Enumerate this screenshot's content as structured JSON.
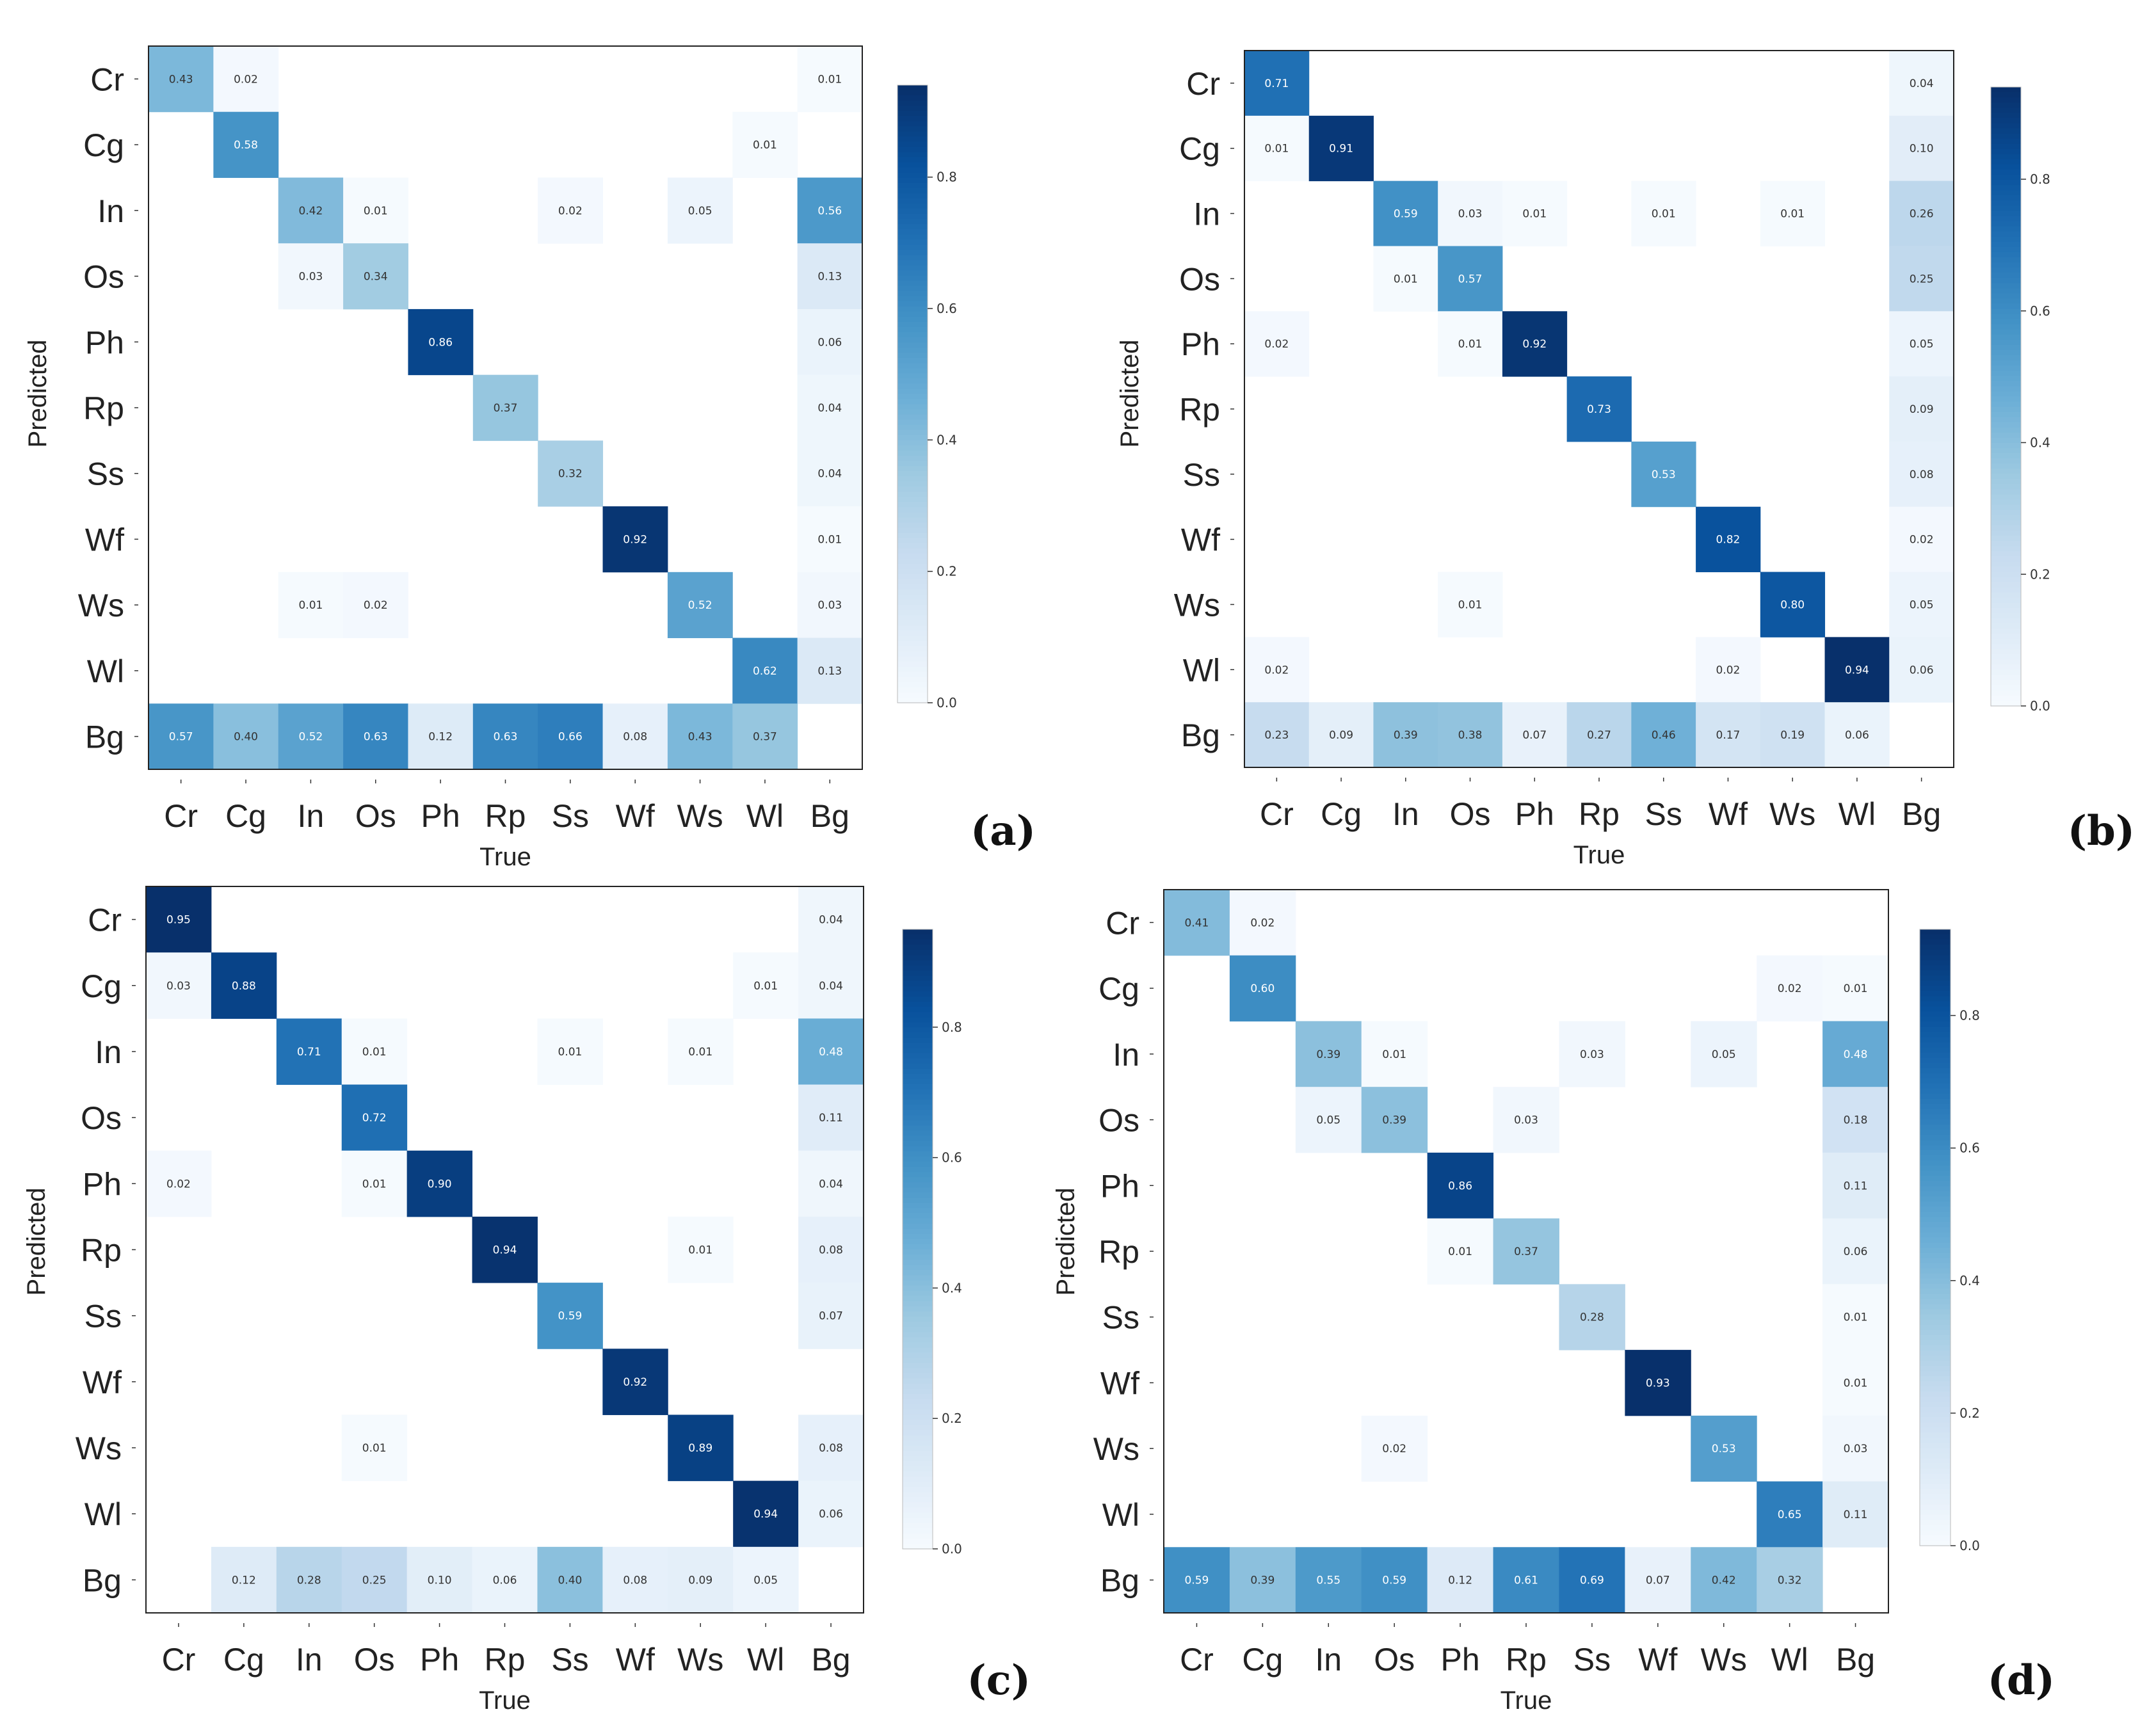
{
  "chart_data": [
    {
      "type": "heatmap",
      "panel_label": "(a)",
      "xlabel": "True",
      "ylabel": "Predicted",
      "row_labels": [
        "Cr",
        "Cg",
        "In",
        "Os",
        "Ph",
        "Rp",
        "Ss",
        "Wf",
        "Ws",
        "Wl",
        "Bg"
      ],
      "col_labels": [
        "Cr",
        "Cg",
        "In",
        "Os",
        "Ph",
        "Rp",
        "Ss",
        "Wf",
        "Ws",
        "Wl",
        "Bg"
      ],
      "colorbar_ticks": [
        "0.0",
        "0.2",
        "0.4",
        "0.6",
        "0.8"
      ],
      "colorbar_range": [
        0,
        0.94
      ],
      "values": [
        [
          0.43,
          0.02,
          null,
          null,
          null,
          null,
          null,
          null,
          null,
          null,
          0.01
        ],
        [
          null,
          0.58,
          null,
          null,
          null,
          null,
          null,
          null,
          null,
          0.01,
          null
        ],
        [
          null,
          null,
          0.42,
          0.01,
          null,
          null,
          0.02,
          null,
          0.05,
          null,
          0.56
        ],
        [
          null,
          null,
          0.03,
          0.34,
          null,
          null,
          null,
          null,
          null,
          null,
          0.13
        ],
        [
          null,
          null,
          null,
          null,
          0.86,
          null,
          null,
          null,
          null,
          null,
          0.06
        ],
        [
          null,
          null,
          null,
          null,
          null,
          0.37,
          null,
          null,
          null,
          null,
          0.04
        ],
        [
          null,
          null,
          null,
          null,
          null,
          null,
          0.32,
          null,
          null,
          null,
          0.04
        ],
        [
          null,
          null,
          null,
          null,
          null,
          null,
          null,
          0.92,
          null,
          null,
          0.01
        ],
        [
          null,
          null,
          0.01,
          0.02,
          null,
          null,
          null,
          null,
          0.52,
          null,
          0.03
        ],
        [
          null,
          null,
          null,
          null,
          null,
          null,
          null,
          null,
          null,
          0.62,
          0.13
        ],
        [
          0.57,
          0.4,
          0.52,
          0.63,
          0.12,
          0.63,
          0.66,
          0.08,
          0.43,
          0.37,
          null
        ]
      ]
    },
    {
      "type": "heatmap",
      "panel_label": "(b)",
      "xlabel": "True",
      "ylabel": "Predicted",
      "row_labels": [
        "Cr",
        "Cg",
        "In",
        "Os",
        "Ph",
        "Rp",
        "Ss",
        "Wf",
        "Ws",
        "Wl",
        "Bg"
      ],
      "col_labels": [
        "Cr",
        "Cg",
        "In",
        "Os",
        "Ph",
        "Rp",
        "Ss",
        "Wf",
        "Ws",
        "Wl",
        "Bg"
      ],
      "colorbar_ticks": [
        "0.0",
        "0.2",
        "0.4",
        "0.6",
        "0.8"
      ],
      "colorbar_range": [
        0,
        0.94
      ],
      "values": [
        [
          0.71,
          null,
          null,
          null,
          null,
          null,
          null,
          null,
          null,
          null,
          0.04
        ],
        [
          0.01,
          0.91,
          null,
          null,
          null,
          null,
          null,
          null,
          null,
          null,
          0.1
        ],
        [
          null,
          null,
          0.59,
          0.03,
          0.01,
          null,
          0.01,
          null,
          0.01,
          null,
          0.26
        ],
        [
          null,
          null,
          0.01,
          0.57,
          null,
          null,
          null,
          null,
          null,
          null,
          0.25
        ],
        [
          0.02,
          null,
          null,
          0.01,
          0.92,
          null,
          null,
          null,
          null,
          null,
          0.05
        ],
        [
          null,
          null,
          null,
          null,
          null,
          0.73,
          null,
          null,
          null,
          null,
          0.09
        ],
        [
          null,
          null,
          null,
          null,
          null,
          null,
          0.53,
          null,
          null,
          null,
          0.08
        ],
        [
          null,
          null,
          null,
          null,
          null,
          null,
          null,
          0.82,
          null,
          null,
          0.02
        ],
        [
          null,
          null,
          null,
          0.01,
          null,
          null,
          null,
          null,
          0.8,
          null,
          0.05
        ],
        [
          0.02,
          null,
          null,
          null,
          null,
          null,
          null,
          0.02,
          null,
          0.94,
          0.06
        ],
        [
          0.23,
          0.09,
          0.39,
          0.38,
          0.07,
          0.27,
          0.46,
          0.17,
          0.19,
          0.06,
          null
        ]
      ]
    },
    {
      "type": "heatmap",
      "panel_label": "(c)",
      "xlabel": "True",
      "ylabel": "Predicted",
      "row_labels": [
        "Cr",
        "Cg",
        "In",
        "Os",
        "Ph",
        "Rp",
        "Ss",
        "Wf",
        "Ws",
        "Wl",
        "Bg"
      ],
      "col_labels": [
        "Cr",
        "Cg",
        "In",
        "Os",
        "Ph",
        "Rp",
        "Ss",
        "Wf",
        "Ws",
        "Wl",
        "Bg"
      ],
      "colorbar_ticks": [
        "0.0",
        "0.2",
        "0.4",
        "0.6",
        "0.8"
      ],
      "colorbar_range": [
        0,
        0.95
      ],
      "values": [
        [
          0.95,
          null,
          null,
          null,
          null,
          null,
          null,
          null,
          null,
          null,
          0.04
        ],
        [
          0.03,
          0.88,
          null,
          null,
          null,
          null,
          null,
          null,
          null,
          0.01,
          0.04
        ],
        [
          null,
          null,
          0.71,
          0.01,
          null,
          null,
          0.01,
          null,
          0.01,
          null,
          0.48
        ],
        [
          null,
          null,
          null,
          0.72,
          null,
          null,
          null,
          null,
          null,
          null,
          0.11
        ],
        [
          0.02,
          null,
          null,
          0.01,
          0.9,
          null,
          null,
          null,
          null,
          null,
          0.04
        ],
        [
          null,
          null,
          null,
          null,
          null,
          0.94,
          null,
          null,
          0.01,
          null,
          0.08
        ],
        [
          null,
          null,
          null,
          null,
          null,
          null,
          0.59,
          null,
          null,
          null,
          0.07
        ],
        [
          null,
          null,
          null,
          null,
          null,
          null,
          null,
          0.92,
          null,
          null,
          null
        ],
        [
          null,
          null,
          null,
          0.01,
          null,
          null,
          null,
          null,
          0.89,
          null,
          0.08
        ],
        [
          null,
          null,
          null,
          null,
          null,
          null,
          null,
          null,
          null,
          0.94,
          0.06
        ],
        [
          null,
          0.12,
          0.28,
          0.25,
          0.1,
          0.06,
          0.4,
          0.08,
          0.09,
          0.05,
          null
        ]
      ]
    },
    {
      "type": "heatmap",
      "panel_label": "(d)",
      "xlabel": "True",
      "ylabel": "Predicted",
      "row_labels": [
        "Cr",
        "Cg",
        "In",
        "Os",
        "Ph",
        "Rp",
        "Ss",
        "Wf",
        "Ws",
        "Wl",
        "Bg"
      ],
      "col_labels": [
        "Cr",
        "Cg",
        "In",
        "Os",
        "Ph",
        "Rp",
        "Ss",
        "Wf",
        "Ws",
        "Wl",
        "Bg"
      ],
      "colorbar_ticks": [
        "0.0",
        "0.2",
        "0.4",
        "0.6",
        "0.8"
      ],
      "colorbar_range": [
        0,
        0.93
      ],
      "values": [
        [
          0.41,
          0.02,
          null,
          null,
          null,
          null,
          null,
          null,
          null,
          null,
          null
        ],
        [
          null,
          0.6,
          null,
          null,
          null,
          null,
          null,
          null,
          null,
          0.02,
          0.01
        ],
        [
          null,
          null,
          0.39,
          0.01,
          null,
          null,
          0.03,
          null,
          0.05,
          null,
          0.48
        ],
        [
          null,
          null,
          0.05,
          0.39,
          null,
          0.03,
          null,
          null,
          null,
          null,
          0.18
        ],
        [
          null,
          null,
          null,
          null,
          0.86,
          null,
          null,
          null,
          null,
          null,
          0.11
        ],
        [
          null,
          null,
          null,
          null,
          0.01,
          0.37,
          null,
          null,
          null,
          null,
          0.06
        ],
        [
          null,
          null,
          null,
          null,
          null,
          null,
          0.28,
          null,
          null,
          null,
          0.01
        ],
        [
          null,
          null,
          null,
          null,
          null,
          null,
          null,
          0.93,
          null,
          null,
          0.01
        ],
        [
          null,
          null,
          null,
          0.02,
          null,
          null,
          null,
          null,
          0.53,
          null,
          0.03
        ],
        [
          null,
          null,
          null,
          null,
          null,
          null,
          null,
          null,
          null,
          0.65,
          0.11
        ],
        [
          0.59,
          0.39,
          0.55,
          0.59,
          0.12,
          0.61,
          0.69,
          0.07,
          0.42,
          0.32,
          null
        ]
      ]
    }
  ]
}
